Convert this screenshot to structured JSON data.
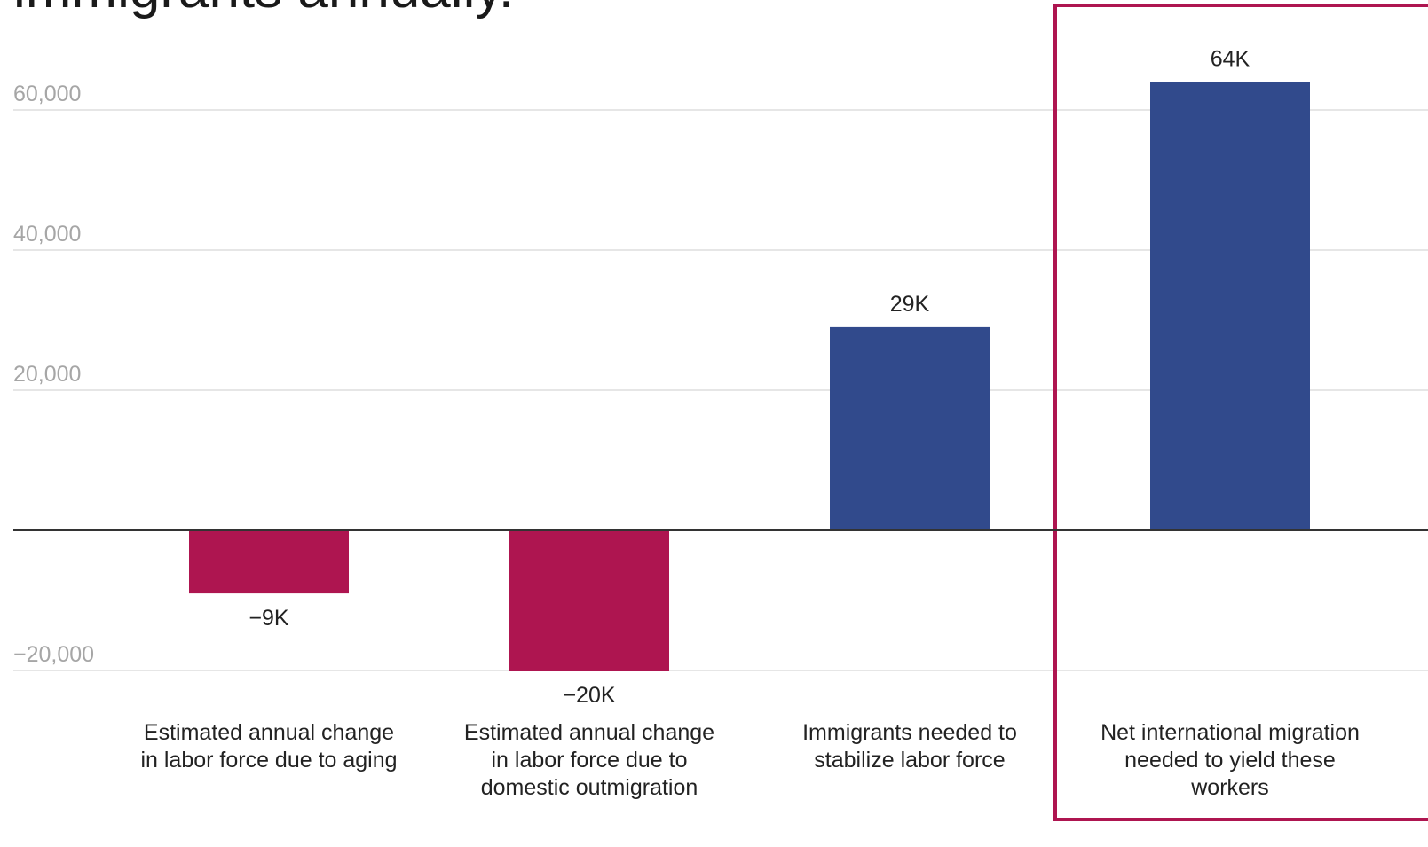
{
  "title": "immigrants annually.",
  "colors": {
    "negative": "#AE1550",
    "positive": "#314A8C",
    "highlight_border": "#AE1550",
    "grid": "#dddddd",
    "zero_line": "#333333",
    "tick_text": "#a6a6a6",
    "label_text": "#222222"
  },
  "chart_data": {
    "type": "bar",
    "categories": [
      "Estimated annual change in labor force due to aging",
      "Estimated annual change in labor force due to domestic outmigration",
      "Immigrants needed to stabilize labor force",
      "Net international migration needed to yield these workers"
    ],
    "category_label_lines": [
      [
        "Estimated annual change",
        "in labor force due to aging"
      ],
      [
        "Estimated annual change",
        "in labor force due to",
        "domestic outmigration"
      ],
      [
        "Immigrants needed to",
        "stabilize labor force"
      ],
      [
        "Net international migration",
        "needed to yield these",
        "workers"
      ]
    ],
    "values": [
      -9000,
      -20000,
      29000,
      64000
    ],
    "value_labels": [
      "−9K",
      "−20K",
      "29K",
      "64K"
    ],
    "ylim": [
      -20000,
      60000
    ],
    "yticks": [
      60000,
      40000,
      20000,
      -20000
    ],
    "ytick_labels": [
      "60,000",
      "40,000",
      "20,000",
      "−20,000"
    ],
    "highlighted_category_index": 3,
    "grid": true,
    "xlabel": "",
    "ylabel": ""
  }
}
